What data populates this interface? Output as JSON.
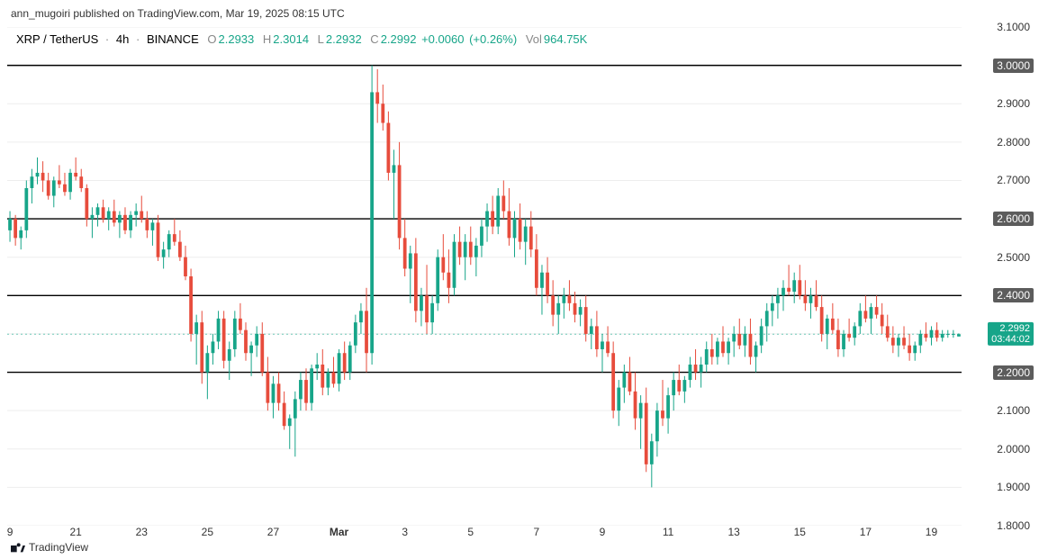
{
  "meta": {
    "header": "ann_mugoiri published on TradingView.com, Mar 19, 2025 08:15 UTC",
    "footer": "TradingView"
  },
  "legend": {
    "symbol": "XRP / TetherUS",
    "interval": "4h",
    "exchange": "BINANCE",
    "O_lbl": "O",
    "O": "2.2933",
    "H_lbl": "H",
    "H": "2.3014",
    "L_lbl": "L",
    "L": "2.2932",
    "C_lbl": "C",
    "C": "2.2992",
    "chg_abs": "+0.0060",
    "chg_pct": "(+0.26%)",
    "vol_lbl": "Vol",
    "vol": "964.75K"
  },
  "colors": {
    "up": "#17a589",
    "down": "#e74c3c",
    "text": "#131722",
    "grid": "#ededed",
    "level": "#000000",
    "priceline": "#6fc7b7",
    "bg": "#ffffff",
    "boxed_bg": "#5c5c5c",
    "price_bg": "#17a589"
  },
  "scale": {
    "y_min": 1.8,
    "y_max": 3.1,
    "y_ticks": [
      3.1,
      3.0,
      2.9,
      2.8,
      2.7,
      2.6,
      2.5,
      2.4,
      2.3,
      2.2,
      2.1,
      2.0,
      1.9,
      1.8
    ],
    "boxed_ticks": [
      3.0,
      2.6,
      2.4,
      2.2
    ],
    "x_labels": [
      {
        "x": 0,
        "t": "9"
      },
      {
        "x": 12,
        "t": "21"
      },
      {
        "x": 24,
        "t": "23"
      },
      {
        "x": 36,
        "t": "25"
      },
      {
        "x": 48,
        "t": "27"
      },
      {
        "x": 60,
        "t": "Mar",
        "bold": true
      },
      {
        "x": 72,
        "t": "3"
      },
      {
        "x": 84,
        "t": "5"
      },
      {
        "x": 96,
        "t": "7"
      },
      {
        "x": 108,
        "t": "9"
      },
      {
        "x": 120,
        "t": "11"
      },
      {
        "x": 132,
        "t": "13"
      },
      {
        "x": 144,
        "t": "15"
      },
      {
        "x": 156,
        "t": "17"
      },
      {
        "x": 168,
        "t": "19"
      }
    ],
    "bars_total": 174,
    "last_price": 2.2992,
    "countdown": "03:44:02"
  },
  "levels": [
    3.0,
    2.6,
    2.4,
    2.2
  ],
  "candles": [
    [
      2.57,
      2.62,
      2.54,
      2.6
    ],
    [
      2.6,
      2.61,
      2.53,
      2.55
    ],
    [
      2.55,
      2.58,
      2.52,
      2.57
    ],
    [
      2.57,
      2.7,
      2.55,
      2.68
    ],
    [
      2.68,
      2.73,
      2.64,
      2.71
    ],
    [
      2.71,
      2.76,
      2.69,
      2.72
    ],
    [
      2.72,
      2.75,
      2.67,
      2.7
    ],
    [
      2.7,
      2.72,
      2.65,
      2.66
    ],
    [
      2.66,
      2.71,
      2.63,
      2.7
    ],
    [
      2.7,
      2.74,
      2.68,
      2.69
    ],
    [
      2.69,
      2.72,
      2.66,
      2.67
    ],
    [
      2.67,
      2.73,
      2.65,
      2.72
    ],
    [
      2.72,
      2.76,
      2.7,
      2.71
    ],
    [
      2.71,
      2.73,
      2.67,
      2.68
    ],
    [
      2.68,
      2.69,
      2.58,
      2.6
    ],
    [
      2.6,
      2.63,
      2.55,
      2.61
    ],
    [
      2.61,
      2.64,
      2.58,
      2.63
    ],
    [
      2.63,
      2.65,
      2.59,
      2.6
    ],
    [
      2.6,
      2.63,
      2.57,
      2.62
    ],
    [
      2.62,
      2.65,
      2.58,
      2.59
    ],
    [
      2.59,
      2.62,
      2.55,
      2.61
    ],
    [
      2.61,
      2.63,
      2.56,
      2.57
    ],
    [
      2.57,
      2.62,
      2.55,
      2.61
    ],
    [
      2.61,
      2.64,
      2.58,
      2.62
    ],
    [
      2.62,
      2.66,
      2.59,
      2.6
    ],
    [
      2.6,
      2.62,
      2.55,
      2.57
    ],
    [
      2.57,
      2.6,
      2.53,
      2.59
    ],
    [
      2.59,
      2.61,
      2.49,
      2.5
    ],
    [
      2.5,
      2.54,
      2.47,
      2.52
    ],
    [
      2.52,
      2.57,
      2.5,
      2.56
    ],
    [
      2.56,
      2.6,
      2.53,
      2.54
    ],
    [
      2.54,
      2.57,
      2.49,
      2.5
    ],
    [
      2.5,
      2.53,
      2.44,
      2.45
    ],
    [
      2.45,
      2.47,
      2.28,
      2.3
    ],
    [
      2.3,
      2.35,
      2.22,
      2.33
    ],
    [
      2.33,
      2.36,
      2.17,
      2.2
    ],
    [
      2.2,
      2.27,
      2.13,
      2.25
    ],
    [
      2.25,
      2.3,
      2.22,
      2.28
    ],
    [
      2.28,
      2.36,
      2.26,
      2.34
    ],
    [
      2.34,
      2.36,
      2.21,
      2.23
    ],
    [
      2.23,
      2.28,
      2.18,
      2.26
    ],
    [
      2.26,
      2.36,
      2.24,
      2.34
    ],
    [
      2.34,
      2.38,
      2.3,
      2.31
    ],
    [
      2.31,
      2.33,
      2.23,
      2.25
    ],
    [
      2.25,
      2.28,
      2.19,
      2.27
    ],
    [
      2.27,
      2.32,
      2.24,
      2.3
    ],
    [
      2.3,
      2.33,
      2.19,
      2.2
    ],
    [
      2.2,
      2.24,
      2.1,
      2.12
    ],
    [
      2.12,
      2.19,
      2.08,
      2.17
    ],
    [
      2.17,
      2.2,
      2.1,
      2.12
    ],
    [
      2.12,
      2.15,
      2.05,
      2.06
    ],
    [
      2.06,
      2.09,
      2.0,
      2.08
    ],
    [
      2.08,
      2.15,
      1.98,
      2.13
    ],
    [
      2.13,
      2.2,
      2.1,
      2.18
    ],
    [
      2.18,
      2.21,
      2.1,
      2.12
    ],
    [
      2.12,
      2.22,
      2.1,
      2.21
    ],
    [
      2.21,
      2.25,
      2.18,
      2.22
    ],
    [
      2.22,
      2.26,
      2.14,
      2.16
    ],
    [
      2.16,
      2.21,
      2.14,
      2.2
    ],
    [
      2.2,
      2.24,
      2.16,
      2.17
    ],
    [
      2.17,
      2.26,
      2.15,
      2.25
    ],
    [
      2.25,
      2.28,
      2.18,
      2.2
    ],
    [
      2.2,
      2.28,
      2.18,
      2.27
    ],
    [
      2.27,
      2.35,
      2.25,
      2.33
    ],
    [
      2.33,
      2.38,
      2.3,
      2.36
    ],
    [
      2.36,
      2.42,
      2.2,
      2.25
    ],
    [
      2.25,
      3.0,
      2.22,
      2.93
    ],
    [
      2.93,
      2.99,
      2.85,
      2.9
    ],
    [
      2.9,
      2.95,
      2.83,
      2.85
    ],
    [
      2.85,
      2.88,
      2.7,
      2.72
    ],
    [
      2.72,
      2.78,
      2.6,
      2.74
    ],
    [
      2.74,
      2.8,
      2.52,
      2.55
    ],
    [
      2.55,
      2.6,
      2.45,
      2.47
    ],
    [
      2.47,
      2.53,
      2.38,
      2.51
    ],
    [
      2.51,
      2.55,
      2.33,
      2.36
    ],
    [
      2.36,
      2.42,
      2.32,
      2.4
    ],
    [
      2.4,
      2.48,
      2.3,
      2.33
    ],
    [
      2.33,
      2.4,
      2.3,
      2.38
    ],
    [
      2.38,
      2.52,
      2.36,
      2.5
    ],
    [
      2.5,
      2.56,
      2.44,
      2.46
    ],
    [
      2.46,
      2.52,
      2.38,
      2.42
    ],
    [
      2.42,
      2.56,
      2.4,
      2.54
    ],
    [
      2.54,
      2.58,
      2.48,
      2.5
    ],
    [
      2.5,
      2.56,
      2.44,
      2.54
    ],
    [
      2.54,
      2.58,
      2.48,
      2.5
    ],
    [
      2.5,
      2.55,
      2.45,
      2.53
    ],
    [
      2.53,
      2.6,
      2.5,
      2.58
    ],
    [
      2.58,
      2.64,
      2.54,
      2.62
    ],
    [
      2.62,
      2.66,
      2.56,
      2.58
    ],
    [
      2.58,
      2.68,
      2.56,
      2.66
    ],
    [
      2.66,
      2.7,
      2.6,
      2.62
    ],
    [
      2.62,
      2.68,
      2.53,
      2.55
    ],
    [
      2.55,
      2.62,
      2.5,
      2.6
    ],
    [
      2.6,
      2.64,
      2.52,
      2.54
    ],
    [
      2.54,
      2.6,
      2.48,
      2.58
    ],
    [
      2.58,
      2.62,
      2.5,
      2.52
    ],
    [
      2.52,
      2.56,
      2.4,
      2.42
    ],
    [
      2.42,
      2.48,
      2.35,
      2.46
    ],
    [
      2.46,
      2.5,
      2.38,
      2.4
    ],
    [
      2.4,
      2.44,
      2.32,
      2.35
    ],
    [
      2.35,
      2.4,
      2.3,
      2.38
    ],
    [
      2.38,
      2.42,
      2.34,
      2.4
    ],
    [
      2.4,
      2.44,
      2.36,
      2.38
    ],
    [
      2.38,
      2.41,
      2.33,
      2.35
    ],
    [
      2.35,
      2.39,
      2.32,
      2.37
    ],
    [
      2.37,
      2.4,
      2.28,
      2.3
    ],
    [
      2.3,
      2.34,
      2.26,
      2.32
    ],
    [
      2.32,
      2.36,
      2.24,
      2.26
    ],
    [
      2.26,
      2.3,
      2.2,
      2.28
    ],
    [
      2.28,
      2.32,
      2.24,
      2.25
    ],
    [
      2.25,
      2.28,
      2.08,
      2.1
    ],
    [
      2.1,
      2.18,
      2.06,
      2.16
    ],
    [
      2.16,
      2.22,
      2.12,
      2.2
    ],
    [
      2.2,
      2.24,
      2.14,
      2.15
    ],
    [
      2.15,
      2.2,
      2.05,
      2.08
    ],
    [
      2.08,
      2.14,
      2.0,
      2.12
    ],
    [
      2.12,
      2.16,
      1.94,
      1.96
    ],
    [
      1.96,
      2.04,
      1.9,
      2.02
    ],
    [
      2.02,
      2.12,
      1.98,
      2.1
    ],
    [
      2.1,
      2.18,
      2.06,
      2.08
    ],
    [
      2.08,
      2.16,
      2.04,
      2.14
    ],
    [
      2.14,
      2.2,
      2.1,
      2.18
    ],
    [
      2.18,
      2.22,
      2.14,
      2.15
    ],
    [
      2.15,
      2.19,
      2.12,
      2.18
    ],
    [
      2.18,
      2.24,
      2.16,
      2.22
    ],
    [
      2.22,
      2.26,
      2.18,
      2.2
    ],
    [
      2.2,
      2.24,
      2.16,
      2.22
    ],
    [
      2.22,
      2.28,
      2.2,
      2.26
    ],
    [
      2.26,
      2.3,
      2.22,
      2.24
    ],
    [
      2.24,
      2.29,
      2.22,
      2.28
    ],
    [
      2.28,
      2.32,
      2.24,
      2.25
    ],
    [
      2.25,
      2.29,
      2.22,
      2.28
    ],
    [
      2.28,
      2.32,
      2.24,
      2.3
    ],
    [
      2.3,
      2.34,
      2.26,
      2.27
    ],
    [
      2.27,
      2.32,
      2.24,
      2.3
    ],
    [
      2.3,
      2.34,
      2.22,
      2.24
    ],
    [
      2.24,
      2.28,
      2.2,
      2.27
    ],
    [
      2.27,
      2.34,
      2.25,
      2.32
    ],
    [
      2.32,
      2.38,
      2.28,
      2.36
    ],
    [
      2.36,
      2.4,
      2.32,
      2.38
    ],
    [
      2.38,
      2.42,
      2.34,
      2.4
    ],
    [
      2.4,
      2.44,
      2.36,
      2.42
    ],
    [
      2.42,
      2.48,
      2.4,
      2.41
    ],
    [
      2.41,
      2.46,
      2.38,
      2.44
    ],
    [
      2.44,
      2.48,
      2.39,
      2.4
    ],
    [
      2.4,
      2.44,
      2.36,
      2.38
    ],
    [
      2.38,
      2.42,
      2.34,
      2.4
    ],
    [
      2.4,
      2.44,
      2.36,
      2.37
    ],
    [
      2.37,
      2.4,
      2.28,
      2.3
    ],
    [
      2.3,
      2.35,
      2.26,
      2.34
    ],
    [
      2.34,
      2.38,
      2.3,
      2.31
    ],
    [
      2.31,
      2.34,
      2.24,
      2.26
    ],
    [
      2.26,
      2.31,
      2.24,
      2.3
    ],
    [
      2.3,
      2.34,
      2.28,
      2.29
    ],
    [
      2.29,
      2.33,
      2.27,
      2.32
    ],
    [
      2.32,
      2.38,
      2.3,
      2.36
    ],
    [
      2.36,
      2.4,
      2.33,
      2.34
    ],
    [
      2.34,
      2.38,
      2.3,
      2.37
    ],
    [
      2.37,
      2.4,
      2.34,
      2.35
    ],
    [
      2.35,
      2.38,
      2.3,
      2.32
    ],
    [
      2.32,
      2.35,
      2.28,
      2.29
    ],
    [
      2.29,
      2.32,
      2.25,
      2.27
    ],
    [
      2.27,
      2.3,
      2.24,
      2.29
    ],
    [
      2.29,
      2.32,
      2.26,
      2.27
    ],
    [
      2.27,
      2.3,
      2.23,
      2.25
    ],
    [
      2.25,
      2.28,
      2.23,
      2.27
    ],
    [
      2.27,
      2.31,
      2.25,
      2.3
    ],
    [
      2.3,
      2.33,
      2.28,
      2.29
    ],
    [
      2.29,
      2.32,
      2.27,
      2.31
    ],
    [
      2.31,
      2.33,
      2.28,
      2.29
    ],
    [
      2.29,
      2.31,
      2.28,
      2.3
    ],
    [
      2.3,
      2.31,
      2.29,
      2.3
    ],
    [
      2.3,
      2.31,
      2.29,
      2.3
    ],
    [
      2.2933,
      2.3014,
      2.2932,
      2.2992
    ]
  ]
}
